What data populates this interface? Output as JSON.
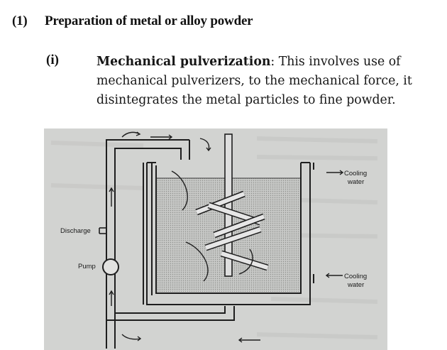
{
  "section": {
    "number": "(1)",
    "title": "Preparation of metal or alloy powder"
  },
  "item": {
    "number": "(i)",
    "term": "Mechanical pulverization",
    "text": ": This involves use of mechanical pulverizers, to the mechanical force, it disintegrates the metal particles to fine powder."
  },
  "figure": {
    "labels": {
      "cooling_top_1": "Cooling",
      "cooling_top_2": "water",
      "discharge": "Discharge",
      "pump": "Pump",
      "cooling_bottom_1": "Cooling",
      "cooling_bottom_2": "water"
    }
  }
}
